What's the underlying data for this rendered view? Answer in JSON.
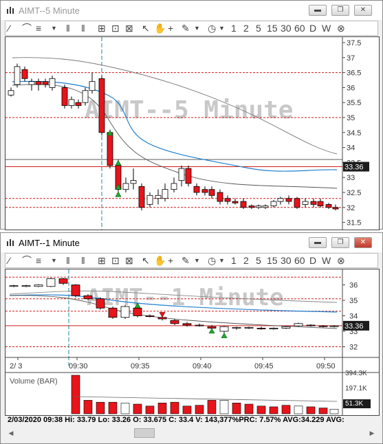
{
  "window1": {
    "title": "AIMT--5 Minute",
    "watermark": "AIMT--5 Minute",
    "price_labels": [
      "37.5",
      "37",
      "36.5",
      "36",
      "35.5",
      "35",
      "34.5",
      "34",
      "33.5",
      "33",
      "32.5",
      "32",
      "31.5"
    ],
    "last_price": "33.36"
  },
  "window2": {
    "title": "AIMT--1 Minute",
    "watermark": "AIMT--1 Minute",
    "price_labels": [
      "36",
      "35",
      "34",
      "33",
      "32"
    ],
    "last_price": "33.36",
    "time_labels": [
      "2/ 3",
      "09:30",
      "09:35",
      "09:40",
      "09:45",
      "09:50"
    ],
    "volume_title": "Volume (BAR)",
    "volume_labels": [
      "394.3K",
      "197.1K",
      "51.3K"
    ],
    "status": "2/03/2020 09:38  Hi: 33.79  Lo: 33.26  O: 33.675  C: 33.4  V: 143,377%PRC: 7.57% AVG:34.229 AVG:"
  },
  "toolbar": {
    "intervals": [
      "1",
      "2",
      "5",
      "15",
      "30",
      "60",
      "D",
      "W"
    ]
  },
  "icons": [
    "line-icon",
    "area-icon",
    "draw-icon",
    "crosshair-icon",
    "pointer-icon",
    "hand-icon",
    "plus-icon",
    "pencil-icon",
    "clock-icon",
    "close-circle-icon",
    "minimize-icon",
    "restore-icon",
    "close-icon"
  ],
  "colors": {
    "up": "#ffffff",
    "down": "#e8141b",
    "signal": "#1faa2d",
    "ma_blue": "#1e7fd0",
    "hline": "#d21c1c"
  }
}
